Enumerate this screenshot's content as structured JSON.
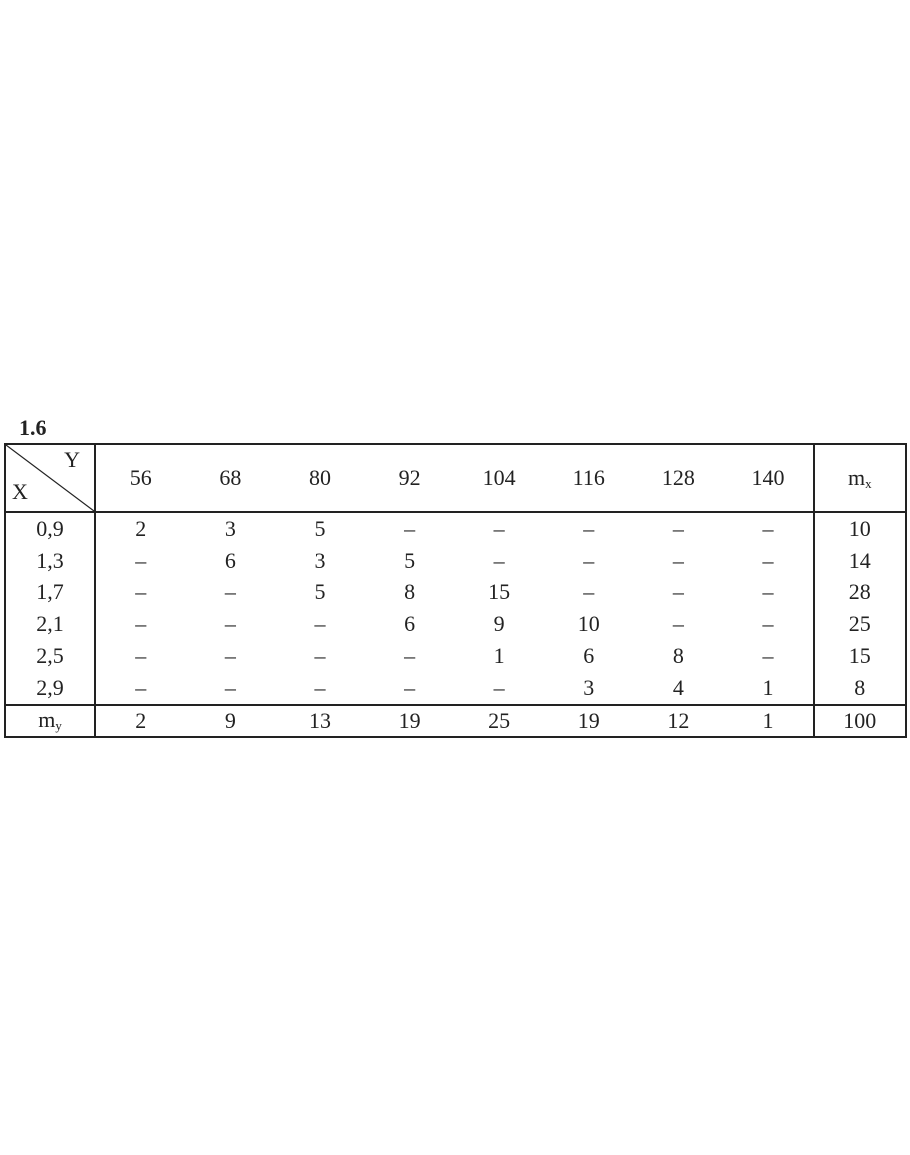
{
  "title": "1.6",
  "table": {
    "corner": {
      "row_var": "X",
      "col_var": "Y"
    },
    "columns": [
      "56",
      "68",
      "80",
      "92",
      "104",
      "116",
      "128",
      "140"
    ],
    "total_col_label": {
      "base": "m",
      "sub": "x"
    },
    "rows": [
      {
        "x": "0,9",
        "cells": [
          "2",
          "3",
          "5",
          "–",
          "–",
          "–",
          "–",
          "–"
        ],
        "mx": "10"
      },
      {
        "x": "1,3",
        "cells": [
          "–",
          "6",
          "3",
          "5",
          "–",
          "–",
          "–",
          "–"
        ],
        "mx": "14"
      },
      {
        "x": "1,7",
        "cells": [
          "–",
          "–",
          "5",
          "8",
          "15",
          "–",
          "–",
          "–"
        ],
        "mx": "28"
      },
      {
        "x": "2,1",
        "cells": [
          "–",
          "–",
          "–",
          "6",
          "9",
          "10",
          "–",
          "–"
        ],
        "mx": "25"
      },
      {
        "x": "2,5",
        "cells": [
          "–",
          "–",
          "–",
          "–",
          "1",
          "6",
          "8",
          "–"
        ],
        "mx": "15"
      },
      {
        "x": "2,9",
        "cells": [
          "–",
          "–",
          "–",
          "–",
          "–",
          "3",
          "4",
          "1"
        ],
        "mx": "8"
      }
    ],
    "total_row_label": {
      "base": "m",
      "sub": "y"
    },
    "my": [
      "2",
      "9",
      "13",
      "19",
      "25",
      "19",
      "12",
      "1"
    ],
    "grand_total": "100"
  }
}
